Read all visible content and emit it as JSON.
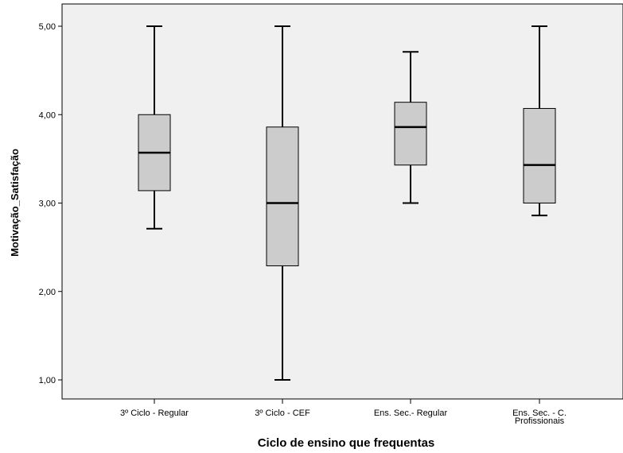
{
  "chart_data": {
    "type": "boxplot",
    "xlabel": "Ciclo de ensino que frequentas",
    "ylabel": "Motivação_Satisfação",
    "ylim": [
      0.7,
      5.25
    ],
    "yticks": [
      "1,00",
      "2,00",
      "3,00",
      "4,00",
      "5,00"
    ],
    "ytick_values": [
      1,
      2,
      3,
      4,
      5
    ],
    "grid": false,
    "categories": [
      [
        "3º Ciclo - Regular"
      ],
      [
        "3º Ciclo - CEF"
      ],
      [
        "Ens. Sec.- Regular"
      ],
      [
        "Ens. Sec. - C.",
        "Profissionais"
      ]
    ],
    "boxes": [
      {
        "min": 2.71,
        "q1": 3.14,
        "median": 3.57,
        "q3": 4.0,
        "max": 5.0
      },
      {
        "min": 1.0,
        "q1": 2.29,
        "median": 3.0,
        "q3": 3.86,
        "max": 5.0
      },
      {
        "min": 3.0,
        "q1": 3.43,
        "median": 3.86,
        "q3": 4.14,
        "max": 4.71
      },
      {
        "min": 2.86,
        "q1": 3.0,
        "median": 3.43,
        "q3": 4.07,
        "max": 5.0
      }
    ],
    "colors": {
      "plot_bg": "#f0f0f0",
      "box_fill": "#cccccc",
      "line": "#000000"
    }
  }
}
